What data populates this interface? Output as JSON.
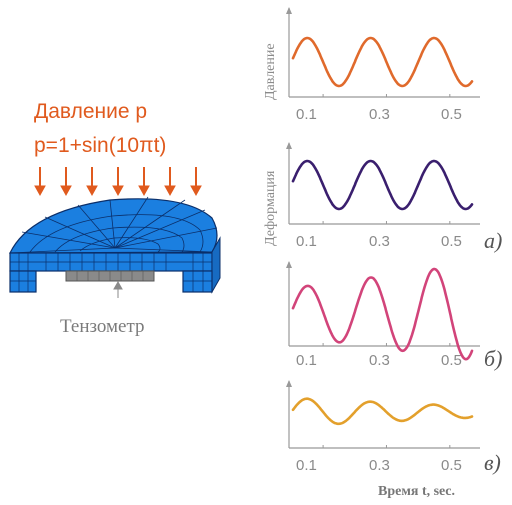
{
  "left": {
    "title_line1": "Давление p",
    "title_line2": "p=1+sin(10πt)",
    "sensor_label": "Тензометр"
  },
  "chart_data": [
    {
      "type": "line",
      "ylabel": "Давление",
      "x_ticks": [
        "0.1",
        "0.3",
        "0.5"
      ],
      "series": [
        {
          "color": "#e06a2c",
          "x": [
            0.0,
            0.6
          ],
          "frequency_hz": 5,
          "amplitude": 1,
          "amplitude_growth": 0
        }
      ]
    },
    {
      "type": "line",
      "ylabel": "Деформация",
      "x_ticks": [
        "0.1",
        "0.3",
        "0.5"
      ],
      "panel_letter": "а)",
      "series": [
        {
          "color": "#3a1f6e",
          "x": [
            0.0,
            0.6
          ],
          "frequency_hz": 5,
          "amplitude": 1,
          "amplitude_growth": 0
        }
      ]
    },
    {
      "type": "line",
      "ylabel": "",
      "x_ticks": [
        "0.1",
        "0.3",
        "0.5"
      ],
      "panel_letter": "б)",
      "series": [
        {
          "color": "#d2447a",
          "x": [
            0.0,
            0.6
          ],
          "frequency_hz": 5,
          "amplitude": 1,
          "amplitude_growth": 1
        }
      ]
    },
    {
      "type": "line",
      "ylabel": "",
      "x_ticks": [
        "0.1",
        "0.3",
        "0.5"
      ],
      "panel_letter": "в)",
      "xlabel": "Время t, sec.",
      "series": [
        {
          "color": "#e3a02c",
          "x": [
            0.0,
            0.6
          ],
          "frequency_hz": 5,
          "amplitude": 1,
          "amplitude_growth": -0.6
        }
      ]
    }
  ],
  "colors": {
    "arrow": "#e05a1e",
    "plate": "#1b7fe0",
    "plate_grid": "#0b2f6a",
    "axis": "#999999",
    "sensor": "#7c7c7c"
  }
}
